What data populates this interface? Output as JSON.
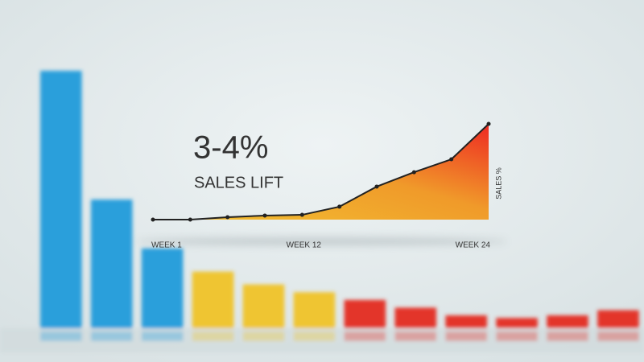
{
  "chart_data": [
    {
      "type": "bar",
      "categories": [
        null,
        null,
        null,
        null,
        null,
        null,
        null,
        null,
        null,
        null,
        null,
        null
      ],
      "values": [
        100,
        50,
        31,
        22,
        17,
        14,
        11,
        8,
        5,
        4,
        5,
        7
      ],
      "colors": [
        "#2a9fdb",
        "#2a9fdb",
        "#2a9fdb",
        "#efc530",
        "#efc530",
        "#efc530",
        "#e3342b",
        "#e3342b",
        "#e3342b",
        "#e3342b",
        "#e3342b",
        "#e3342b"
      ],
      "ylim": [
        0,
        100
      ]
    },
    {
      "type": "area",
      "title": "3-4%",
      "subtitle": "SALES LIFT",
      "ylabel": "SALES %",
      "categories": [
        "WEEK 1",
        null,
        null,
        null,
        "WEEK 12",
        null,
        null,
        null,
        null,
        "WEEK 24"
      ],
      "values": [
        0,
        0,
        0.1,
        0.17,
        0.2,
        0.54,
        1.38,
        1.98,
        2.52,
        4.0
      ],
      "color": "#222222",
      "ylim": [
        0,
        4
      ]
    }
  ]
}
